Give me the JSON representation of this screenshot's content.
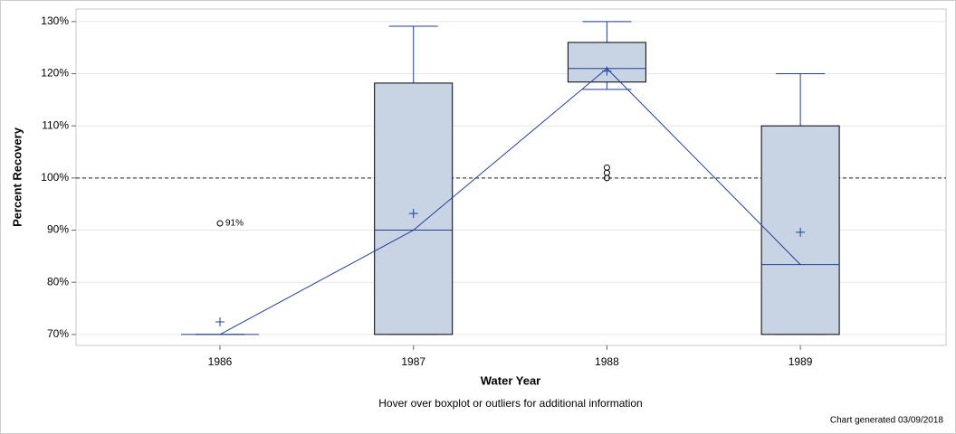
{
  "chart_data": {
    "type": "box",
    "x_label": "Water Year",
    "y_label": "Percent Recovery",
    "footer": "Hover over boxplot or outliers for additional information",
    "note": "Chart generated 03/09/2018",
    "categories": [
      "1986",
      "1987",
      "1988",
      "1989"
    ],
    "boxes": [
      {
        "min": 70,
        "q1": 70,
        "median": 70,
        "q3": 70,
        "max": 70,
        "mean": 72.4,
        "outliers": [
          91.3
        ],
        "outlier_labels": [
          "91%"
        ]
      },
      {
        "min": 70,
        "q1": 70,
        "median": 90,
        "q3": 118.2,
        "max": 129.1,
        "mean": 93.2,
        "outliers": []
      },
      {
        "min": 117,
        "q1": 118.4,
        "median": 121,
        "q3": 126,
        "max": 130,
        "mean": 120.5,
        "outliers": [
          102,
          101,
          100
        ]
      },
      {
        "min": 70,
        "q1": 70,
        "median": 83.4,
        "q3": 110,
        "max": 120,
        "mean": 89.6,
        "outliers": []
      }
    ],
    "box_color": "#c8d3e3",
    "line_color": "#1f3f99",
    "reference_line": 100,
    "ylim": [
      67.9,
      132.4
    ],
    "yticks": [
      {
        "value": 70,
        "label": "70%"
      },
      {
        "value": 80,
        "label": "80%"
      },
      {
        "value": 90,
        "label": "90%"
      },
      {
        "value": 100,
        "label": "100%"
      },
      {
        "value": 110,
        "label": "110%"
      },
      {
        "value": 120,
        "label": "120%"
      },
      {
        "value": 130,
        "label": "130%"
      }
    ],
    "grid": true
  }
}
